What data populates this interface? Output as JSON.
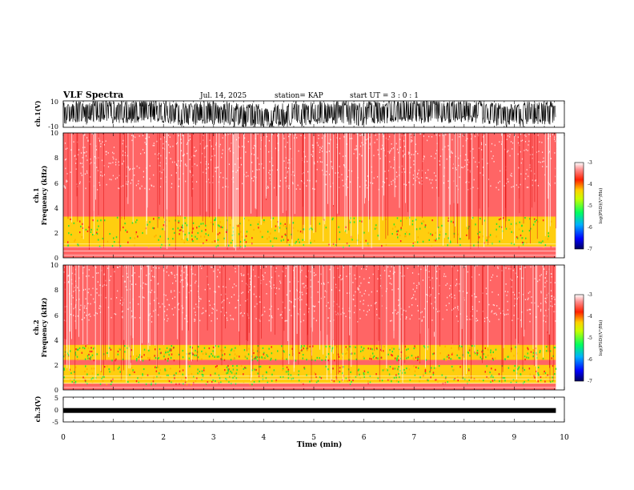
{
  "header": {
    "title": "VLF Spectra",
    "date": "Jul. 14, 2025",
    "station": "station= KAP",
    "start": "start  UT =   3 : 0  : 1"
  },
  "chart_data": [
    {
      "id": "ch1_waveform",
      "type": "line",
      "ylabel": "ch.1(V)",
      "ylim": [
        -10,
        10
      ],
      "yticks": [
        10,
        -10
      ],
      "xlim": [
        0,
        10
      ],
      "data_extent_min": 9.83,
      "description_values": {
        "typical_min": -9,
        "typical_max": 9
      }
    },
    {
      "id": "ch1_spectrogram",
      "type": "heatmap",
      "ylabel_line1": "ch.1",
      "ylabel_line2": "Frequency (kHz)",
      "ylim": [
        0,
        10
      ],
      "yticks": [
        0,
        2,
        4,
        6,
        8,
        10
      ],
      "xlim": [
        0,
        10
      ],
      "band_kHz": [
        [
          0.9,
          3.3
        ]
      ],
      "colorbar": {
        "label": "log(PSD)(V²/Hz)",
        "range": [
          -7,
          -3
        ],
        "ticks": [
          "-3",
          "-4",
          "-5",
          "-6",
          "-7"
        ]
      }
    },
    {
      "id": "ch2_spectrogram",
      "type": "heatmap",
      "ylabel_line1": "ch.2",
      "ylabel_line2": "Frequency (kHz)",
      "ylim": [
        0,
        10
      ],
      "yticks": [
        0,
        2,
        4,
        6,
        8,
        10
      ],
      "xlim": [
        0,
        10
      ],
      "band_kHz": [
        [
          0.5,
          2.0
        ],
        [
          2.4,
          3.6
        ]
      ],
      "colorbar": {
        "label": "log(PSD)(V²/Hz)",
        "range": [
          -7,
          -3
        ],
        "ticks": [
          "-3",
          "-4",
          "-5",
          "-6",
          "-7"
        ]
      }
    },
    {
      "id": "ch3_waveform",
      "type": "line",
      "ylabel": "ch.3(V)",
      "ylim": [
        -5,
        5
      ],
      "yticks": [
        5,
        0,
        -5
      ],
      "xlim": [
        0,
        10
      ],
      "level": -0.4
    }
  ],
  "xaxis": {
    "label": "Time (min)",
    "ticks": [
      "0",
      "1",
      "2",
      "3",
      "4",
      "5",
      "6",
      "7",
      "8",
      "9",
      "10"
    ]
  },
  "colors": {
    "red": "#ff2020",
    "yellow": "#ffe000",
    "green": "#30e030"
  }
}
